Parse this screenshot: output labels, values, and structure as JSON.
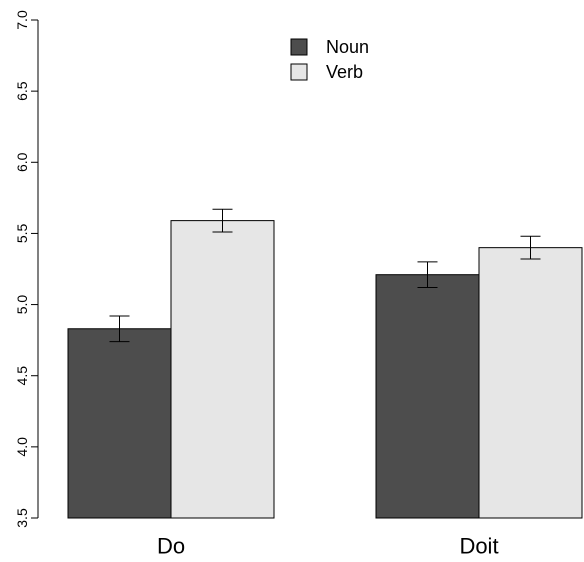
{
  "chart_data": {
    "type": "bar",
    "title": "",
    "xlabel": "",
    "ylabel": "",
    "categories": [
      "Do",
      "Doit"
    ],
    "series": [
      {
        "name": "Noun",
        "color": "#4d4d4d",
        "values": [
          4.83,
          5.21
        ],
        "error": [
          0.09,
          0.09
        ]
      },
      {
        "name": "Verb",
        "color": "#e6e6e6",
        "values": [
          5.59,
          5.4
        ],
        "error": [
          0.08,
          0.08
        ]
      }
    ],
    "ylim": [
      3.5,
      7.0
    ],
    "yticks": [
      "3.5",
      "4.0",
      "4.5",
      "5.0",
      "5.5",
      "6.0",
      "6.5",
      "7.0"
    ],
    "grid": false,
    "legend_position": "top-center",
    "error_bars": true
  }
}
